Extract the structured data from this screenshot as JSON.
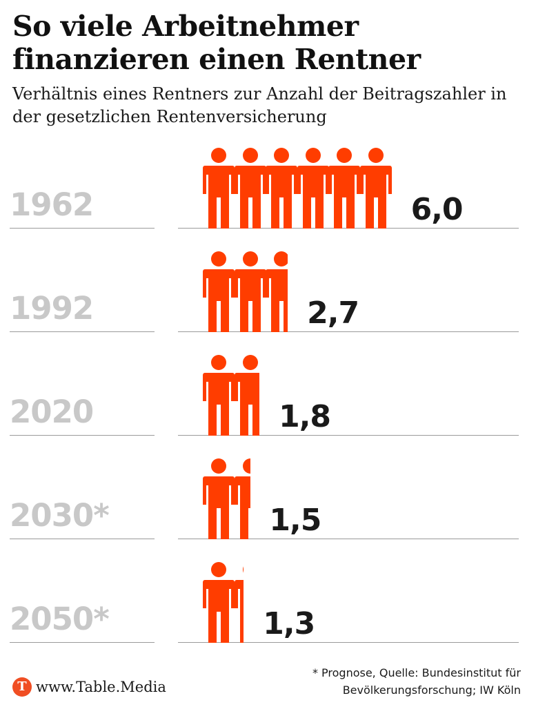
{
  "title": "So viele Arbeitnehmer finanzieren einen Rentner",
  "subtitle": "Verhältnis eines Rentners zur Anzahl der Beitragszahler in der gesetzlichen Rentenversicherung",
  "colors": {
    "person": "#ff3d00",
    "year_label": "#c8c8c8",
    "value_label": "#1a1a1a",
    "logo": "#f04e23"
  },
  "icon": "person-icon",
  "chart_data": {
    "type": "bar",
    "title": "So viele Arbeitnehmer finanzieren einen Rentner",
    "subtitle": "Verhältnis eines Rentners zur Anzahl der Beitragszahler in der gesetzlichen Rentenversicherung",
    "categories": [
      "1962",
      "1992",
      "2020",
      "2030*",
      "2050*"
    ],
    "values": [
      6.0,
      2.7,
      1.8,
      1.5,
      1.3
    ],
    "value_labels": [
      "6,0",
      "2,7",
      "1,8",
      "1,5",
      "1,3"
    ],
    "grid": false,
    "legend": "none"
  },
  "footer": {
    "logo_letter": "T",
    "brand": "www.Table.Media",
    "note_line1": "* Prognose, Quelle: Bundesinstitut für",
    "note_line2": "Bevölkerungsforschung; IW Köln"
  }
}
